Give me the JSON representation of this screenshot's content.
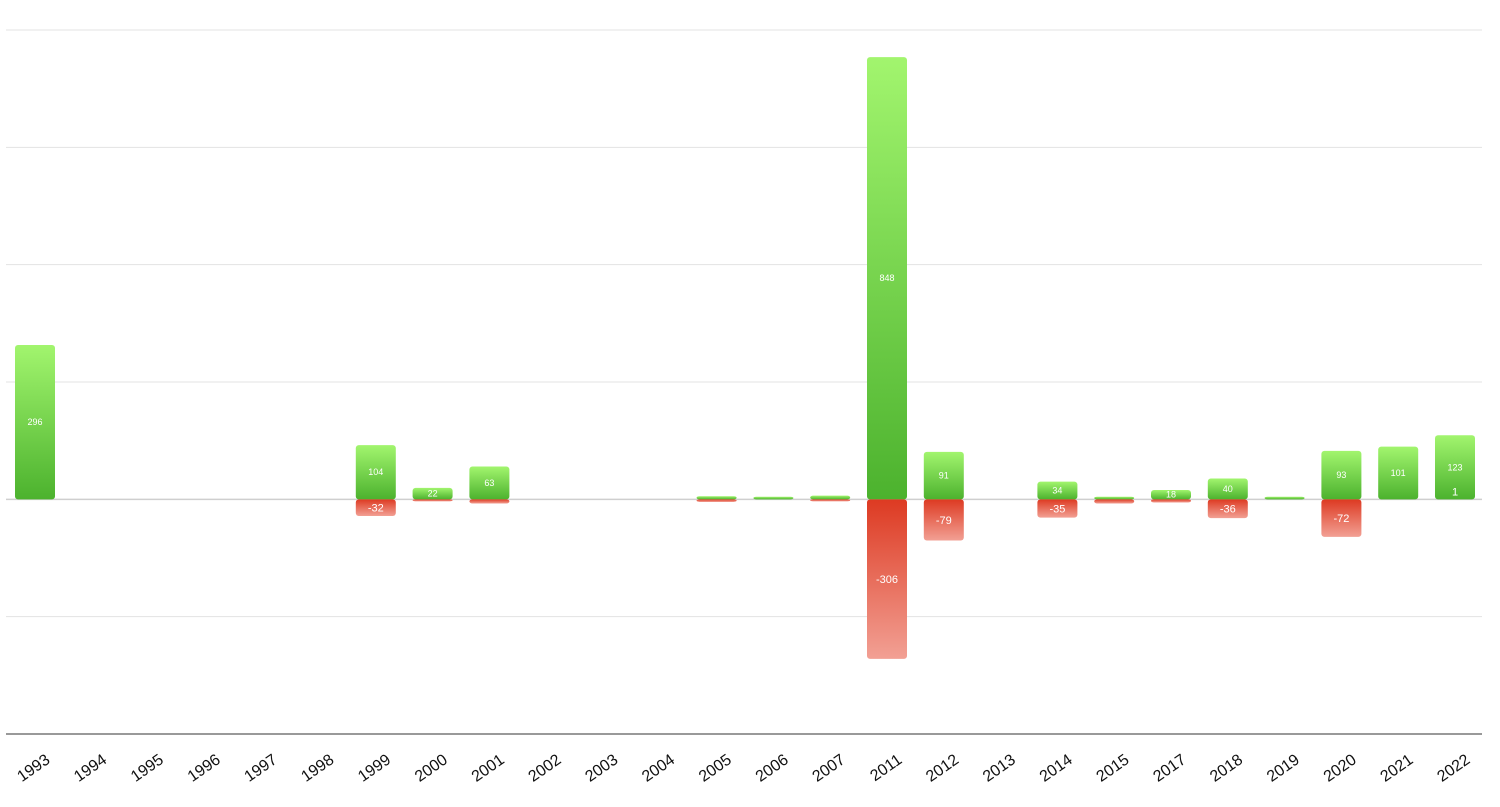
{
  "chart_data": {
    "type": "bar",
    "stacked": "diverging",
    "categories": [
      "1993",
      "1994",
      "1995",
      "1996",
      "1997",
      "1998",
      "1999",
      "2000",
      "2001",
      "2002",
      "2003",
      "2004",
      "2005",
      "2006",
      "2007",
      "2011",
      "2012",
      "2013",
      "2014",
      "2015",
      "2017",
      "2018",
      "2019",
      "2020",
      "2021",
      "2022"
    ],
    "series": [
      {
        "color": "#5cc23a",
        "values": [
          296,
          0,
          0,
          0,
          0,
          0,
          104,
          22,
          63,
          0,
          0,
          0,
          6,
          5,
          7,
          848,
          91,
          0,
          34,
          5,
          18,
          40,
          5,
          93,
          101,
          123
        ],
        "labels": [
          "296",
          "",
          "",
          "",
          "",
          "",
          "104",
          "22",
          "63",
          "",
          "",
          "",
          "",
          "",
          "",
          "848",
          "91",
          "",
          "34",
          "",
          "18",
          "40",
          "",
          "93",
          "101",
          "123"
        ]
      },
      {
        "color": "#e0422c",
        "values": [
          0,
          0,
          0,
          0,
          0,
          0,
          -32,
          -3,
          -8,
          0,
          0,
          0,
          -5,
          0,
          -3,
          -306,
          -79,
          0,
          -35,
          -8,
          -6,
          -36,
          0,
          -72,
          0,
          0
        ],
        "labels": [
          "",
          "",
          "",
          "",
          "",
          "",
          "-32",
          "",
          "",
          "",
          "",
          "",
          "",
          "",
          "",
          "-306",
          "-79",
          "",
          "-35",
          "",
          "",
          "-36",
          "",
          "-72",
          "",
          ""
        ]
      }
    ],
    "annotations": [
      {
        "category": "2022",
        "text": "1"
      }
    ],
    "ylim": [
      -450,
      900
    ],
    "y_grid_step": 225,
    "grid": true,
    "legend": "none"
  }
}
